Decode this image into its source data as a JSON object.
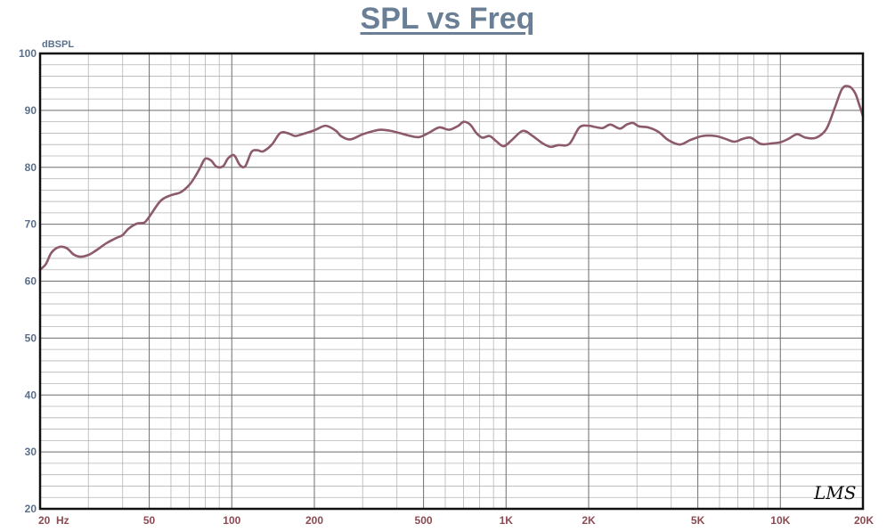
{
  "chart_data": {
    "type": "line",
    "title": "SPL vs Freq",
    "ylabel": "dBSPL",
    "xlabel": "",
    "x_scale": "log",
    "xlim": [
      20,
      20000
    ],
    "ylim": [
      20,
      100
    ],
    "grid": true,
    "y_ticks": [
      "20",
      "30",
      "40",
      "50",
      "60",
      "70",
      "80",
      "90",
      "100"
    ],
    "x_ticks": [
      {
        "value": 20,
        "label": "20"
      },
      {
        "value": 50,
        "label": "50"
      },
      {
        "value": 100,
        "label": "100"
      },
      {
        "value": 200,
        "label": "200"
      },
      {
        "value": 500,
        "label": "500"
      },
      {
        "value": 1000,
        "label": "1K"
      },
      {
        "value": 2000,
        "label": "2K"
      },
      {
        "value": 5000,
        "label": "5K"
      },
      {
        "value": 10000,
        "label": "10K"
      },
      {
        "value": 20000,
        "label": "20K"
      }
    ],
    "x_unit": "Hz",
    "line_color": "#8c5a6a",
    "series": [
      {
        "x": [
          20,
          21,
          22,
          23.5,
          25,
          26.5,
          28,
          30,
          32,
          35,
          38,
          40,
          42,
          45,
          48,
          50,
          55,
          60,
          65,
          70,
          74,
          77,
          80,
          84,
          88,
          93,
          97,
          102,
          107,
          112,
          118,
          124,
          130,
          140,
          150,
          160,
          170,
          180,
          200,
          220,
          240,
          250,
          270,
          300,
          330,
          350,
          380,
          410,
          440,
          480,
          520,
          570,
          620,
          670,
          700,
          740,
          780,
          820,
          870,
          920,
          980,
          1050,
          1150,
          1250,
          1350,
          1450,
          1550,
          1700,
          1850,
          2000,
          2100,
          2250,
          2400,
          2600,
          2750,
          2900,
          3050,
          3300,
          3600,
          3900,
          4300,
          4700,
          5200,
          5800,
          6300,
          6800,
          7300,
          7800,
          8500,
          9300,
          10000,
          10700,
          11500,
          12400,
          13500,
          14700,
          15800,
          16800,
          17800,
          18700,
          19300,
          20000
        ],
        "y": [
          62,
          63,
          65,
          66,
          65.8,
          64.7,
          64.3,
          64.6,
          65.4,
          66.7,
          67.6,
          68.1,
          69.2,
          70.1,
          70.3,
          71.3,
          74.1,
          75.1,
          75.6,
          76.9,
          78.6,
          80.1,
          81.5,
          81.2,
          80.1,
          80.2,
          81.6,
          82.1,
          80.4,
          80.2,
          82.7,
          83.0,
          82.8,
          84.0,
          86.0,
          86.0,
          85.5,
          85.8,
          86.5,
          87.3,
          86.4,
          85.5,
          84.9,
          85.8,
          86.4,
          86.6,
          86.4,
          86.0,
          85.6,
          85.3,
          86.0,
          87.0,
          86.6,
          87.3,
          88.0,
          87.5,
          86.0,
          85.2,
          85.5,
          84.6,
          83.7,
          84.8,
          86.4,
          85.5,
          84.3,
          83.6,
          83.9,
          84.1,
          87.0,
          87.3,
          87.1,
          86.9,
          87.5,
          86.8,
          87.5,
          87.8,
          87.2,
          87.0,
          86.2,
          84.8,
          84.0,
          84.8,
          85.5,
          85.5,
          85.0,
          84.5,
          85.0,
          85.2,
          84.1,
          84.2,
          84.4,
          85.0,
          85.8,
          85.2,
          85.2,
          86.7,
          90.5,
          93.8,
          94.2,
          93.1,
          91.3,
          89.0
        ]
      }
    ]
  },
  "logo_text": "LMS"
}
